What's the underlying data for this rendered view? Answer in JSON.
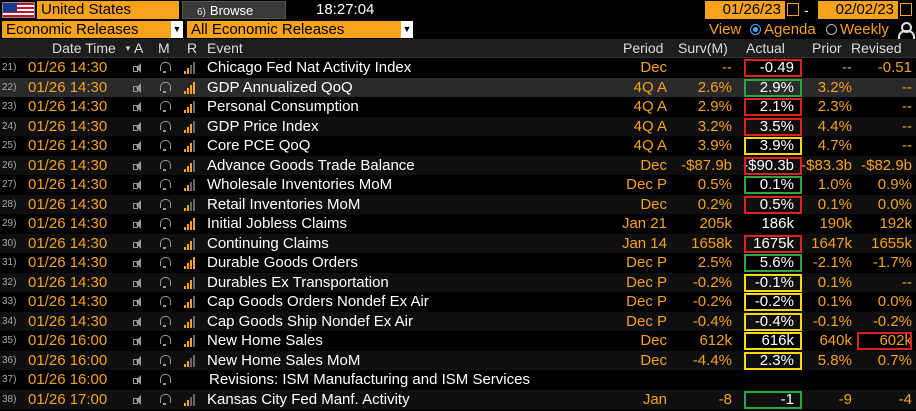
{
  "toolbar": {
    "country": "United States",
    "browse_num": "6)",
    "browse_label": "Browse",
    "time": "18:27:04",
    "date_from": "01/26/23",
    "date_sep": "-",
    "date_to": "02/02/23"
  },
  "filters": {
    "category": "Economic Releases",
    "type": "All Economic Releases",
    "view_label": "View",
    "view_options": [
      "Agenda",
      "Weekly"
    ],
    "view_selected": "Agenda"
  },
  "columns": {
    "datetime": "Date Time",
    "a": "A",
    "m": "M",
    "r": "R",
    "event": "Event",
    "period": "Period",
    "survey": "Surv(M)",
    "actual": "Actual",
    "prior": "Prior",
    "revised": "Revised"
  },
  "colors": {
    "accent": "#f7a21b",
    "red": "#e02020",
    "green": "#28a745",
    "yellow": "#f5d90a"
  },
  "rows": [
    {
      "n": "21)",
      "dt": "01/26 14:30",
      "event": "Chicago Fed Nat Activity Index",
      "period": "Dec",
      "survey": "--",
      "actual": "-0.49",
      "prior": "--",
      "revised": "-0.51",
      "hl": "red",
      "bars": 2
    },
    {
      "n": "22)",
      "dt": "01/26 14:30",
      "event": "GDP Annualized QoQ",
      "period": "4Q A",
      "survey": "2.6%",
      "actual": "2.9%",
      "prior": "3.2%",
      "revised": "--",
      "hl": "green",
      "bars": 4
    },
    {
      "n": "23)",
      "dt": "01/26 14:30",
      "event": "Personal Consumption",
      "period": "4Q A",
      "survey": "2.9%",
      "actual": "2.1%",
      "prior": "2.3%",
      "revised": "--",
      "hl": "red",
      "bars": 3
    },
    {
      "n": "24)",
      "dt": "01/26 14:30",
      "event": "GDP Price Index",
      "period": "4Q A",
      "survey": "3.2%",
      "actual": "3.5%",
      "prior": "4.4%",
      "revised": "--",
      "hl": "red",
      "bars": 3
    },
    {
      "n": "25)",
      "dt": "01/26 14:30",
      "event": "Core PCE QoQ",
      "period": "4Q A",
      "survey": "3.9%",
      "actual": "3.9%",
      "prior": "4.7%",
      "revised": "--",
      "hl": "yellow",
      "bars": 3
    },
    {
      "n": "26)",
      "dt": "01/26 14:30",
      "event": "Advance Goods Trade Balance",
      "period": "Dec",
      "survey": "-$87.9b",
      "actual": "-$90.3b",
      "prior": "-$83.3b",
      "revised": "-$82.9b",
      "hl": "red",
      "bars": 3
    },
    {
      "n": "27)",
      "dt": "01/26 14:30",
      "event": "Wholesale Inventories MoM",
      "period": "Dec P",
      "survey": "0.5%",
      "actual": "0.1%",
      "prior": "1.0%",
      "revised": "0.9%",
      "hl": "green",
      "bars": 2
    },
    {
      "n": "28)",
      "dt": "01/26 14:30",
      "event": "Retail Inventories MoM",
      "period": "Dec",
      "survey": "0.2%",
      "actual": "0.5%",
      "prior": "0.1%",
      "revised": "0.0%",
      "hl": "red",
      "bars": 2
    },
    {
      "n": "29)",
      "dt": "01/26 14:30",
      "event": "Initial Jobless Claims",
      "period": "Jan 21",
      "survey": "205k",
      "actual": "186k",
      "prior": "190k",
      "revised": "192k",
      "hl": "",
      "bars": 4
    },
    {
      "n": "30)",
      "dt": "01/26 14:30",
      "event": "Continuing Claims",
      "period": "Jan 14",
      "survey": "1658k",
      "actual": "1675k",
      "prior": "1647k",
      "revised": "1655k",
      "hl": "red",
      "bars": 3
    },
    {
      "n": "31)",
      "dt": "01/26 14:30",
      "event": "Durable Goods Orders",
      "period": "Dec P",
      "survey": "2.5%",
      "actual": "5.6%",
      "prior": "-2.1%",
      "revised": "-1.7%",
      "hl": "green",
      "bars": 4
    },
    {
      "n": "32)",
      "dt": "01/26 14:30",
      "event": "Durables Ex Transportation",
      "period": "Dec P",
      "survey": "-0.2%",
      "actual": "-0.1%",
      "prior": "0.1%",
      "revised": "--",
      "hl": "yellow",
      "bars": 3
    },
    {
      "n": "33)",
      "dt": "01/26 14:30",
      "event": "Cap Goods Orders Nondef Ex Air",
      "period": "Dec P",
      "survey": "-0.2%",
      "actual": "-0.2%",
      "prior": "0.1%",
      "revised": "0.0%",
      "hl": "yellow",
      "bars": 3
    },
    {
      "n": "34)",
      "dt": "01/26 14:30",
      "event": "Cap Goods Ship Nondef Ex Air",
      "period": "Dec P",
      "survey": "-0.4%",
      "actual": "-0.4%",
      "prior": "-0.1%",
      "revised": "-0.2%",
      "hl": "yellow",
      "bars": 3
    },
    {
      "n": "35)",
      "dt": "01/26 16:00",
      "event": "New Home Sales",
      "period": "Dec",
      "survey": "612k",
      "actual": "616k",
      "prior": "640k",
      "revised": "602k",
      "hl": "yellow",
      "hl_rev": "red",
      "bars": 3
    },
    {
      "n": "36)",
      "dt": "01/26 16:00",
      "event": "New Home Sales MoM",
      "period": "Dec",
      "survey": "-4.4%",
      "actual": "2.3%",
      "prior": "5.8%",
      "revised": "0.7%",
      "hl": "yellow",
      "bars": 2
    },
    {
      "n": "37)",
      "dt": "01/26 16:00",
      "event": "Revisions: ISM Manufacturing and ISM Services",
      "period": "",
      "survey": "",
      "actual": "",
      "prior": "",
      "revised": "",
      "hl": "",
      "bars": 0
    },
    {
      "n": "38)",
      "dt": "01/26 17:00",
      "event": "Kansas City Fed Manf. Activity",
      "period": "Jan",
      "survey": "-8",
      "actual": "-1",
      "prior": "-9",
      "revised": "-4",
      "hl": "green",
      "bars": 2
    }
  ]
}
